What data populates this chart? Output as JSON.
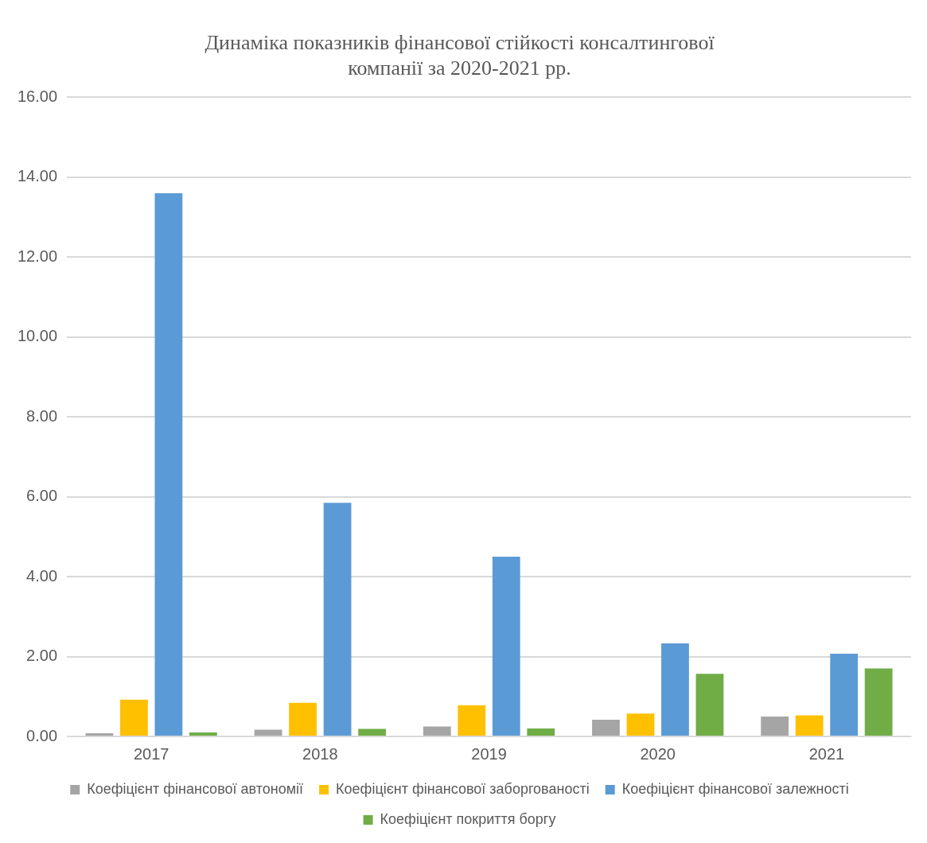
{
  "chart_data": {
    "type": "bar",
    "title": "Динаміка показників фінансової стійкості консалтингової компанії за 2020-2021 рр.",
    "categories": [
      "2017",
      "2018",
      "2019",
      "2020",
      "2021"
    ],
    "series": [
      {
        "name": "Коефіцієнт фінансової автономії",
        "color": "#a5a5a5",
        "values": [
          0.08,
          0.17,
          0.25,
          0.42,
          0.5
        ]
      },
      {
        "name": "Коефіцієнт фінансової заборгованості",
        "color": "#ffc000",
        "values": [
          0.92,
          0.84,
          0.78,
          0.57,
          0.53
        ]
      },
      {
        "name": "Коефіцієнт фінансової залежності",
        "color": "#5b9bd5",
        "values": [
          13.6,
          5.85,
          4.5,
          2.33,
          2.07
        ]
      },
      {
        "name": "Коефіцієнт покриття боргу",
        "color": "#70ad47",
        "values": [
          0.1,
          0.19,
          0.2,
          1.57,
          1.7
        ]
      }
    ],
    "ylim": [
      0,
      16
    ],
    "yticks": [
      {
        "value": 0,
        "label": "0.00"
      },
      {
        "value": 2,
        "label": "2.00"
      },
      {
        "value": 4,
        "label": "4.00"
      },
      {
        "value": 6,
        "label": "6.00"
      },
      {
        "value": 8,
        "label": "8.00"
      },
      {
        "value": 10,
        "label": "10.00"
      },
      {
        "value": 12,
        "label": "12.00"
      },
      {
        "value": 14,
        "label": "14.00"
      },
      {
        "value": 16,
        "label": "16.00"
      }
    ],
    "grid": "y",
    "legend": "bottom"
  }
}
